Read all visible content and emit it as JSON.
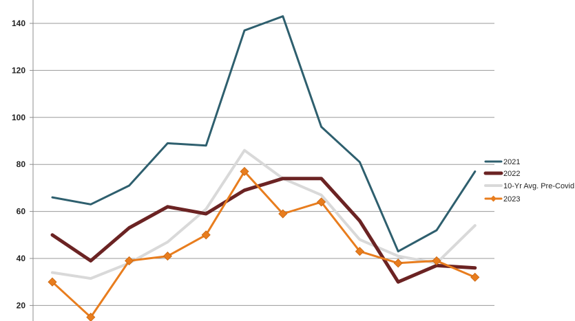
{
  "chart_data": {
    "type": "line",
    "title": "",
    "xlabel": "",
    "ylabel": "",
    "ylim": [
      10,
      150
    ],
    "yticks": [
      20,
      40,
      60,
      80,
      100,
      120,
      140
    ],
    "grid": "horizontal",
    "legend_position": "right",
    "x": [
      1,
      2,
      3,
      4,
      5,
      6,
      7,
      8,
      9,
      10,
      11,
      12
    ],
    "series": [
      {
        "name": "2021",
        "color": "#2e5f6e",
        "marker": "none",
        "values": [
          66,
          63,
          71,
          89,
          88,
          137,
          143,
          96,
          81,
          43,
          52,
          77
        ]
      },
      {
        "name": "2022",
        "color": "#6b2323",
        "marker": "none",
        "values": [
          50,
          39,
          53,
          62,
          59,
          69,
          74,
          74,
          56,
          30,
          37,
          36
        ]
      },
      {
        "name": "10-Yr Avg. Pre-Covid",
        "color": "#d9d9d9",
        "marker": "none",
        "values": [
          34,
          31.5,
          38,
          47,
          61,
          86,
          74,
          67,
          48,
          41,
          38,
          54
        ]
      },
      {
        "name": "2023",
        "color": "#e87d1e",
        "marker": "diamond",
        "values": [
          30,
          15,
          39,
          41,
          50,
          77,
          59,
          64,
          43,
          38,
          39,
          32
        ]
      }
    ]
  }
}
